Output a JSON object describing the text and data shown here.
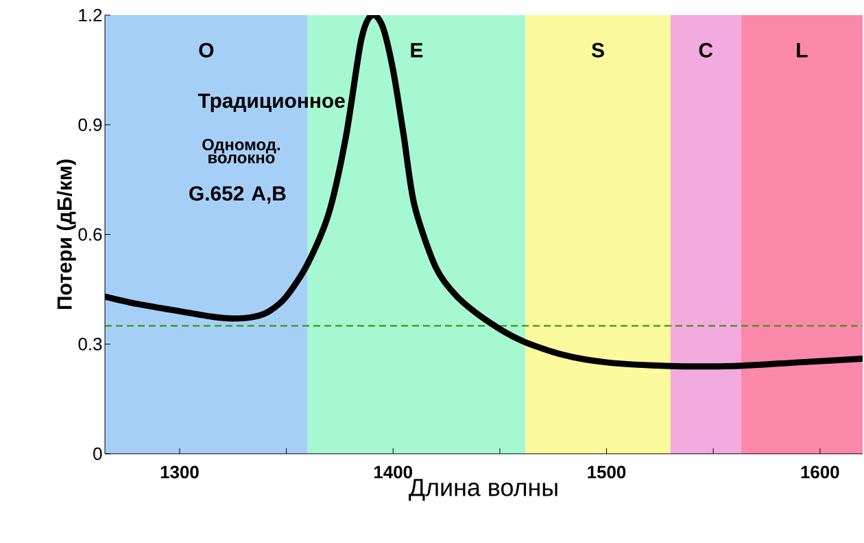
{
  "chart_data": {
    "type": "line",
    "xlabel": "Длина волны",
    "ylabel": "Потери  (дБ/км)",
    "x": [
      1265,
      1280,
      1300,
      1315,
      1325,
      1335,
      1342,
      1350,
      1360,
      1370,
      1378,
      1385,
      1390,
      1395,
      1400,
      1405,
      1410,
      1420,
      1430,
      1445,
      1460,
      1480,
      1500,
      1530,
      1560,
      1590,
      1620
    ],
    "series": [
      {
        "color": "#000000",
        "values": [
          0.43,
          0.41,
          0.39,
          0.375,
          0.37,
          0.375,
          0.39,
          0.43,
          0.52,
          0.66,
          0.87,
          1.13,
          1.2,
          1.17,
          1.05,
          0.87,
          0.68,
          0.51,
          0.43,
          0.36,
          0.31,
          0.27,
          0.25,
          0.24,
          0.24,
          0.25,
          0.26
        ]
      }
    ],
    "xlim": [
      1265,
      1620
    ],
    "ylim": [
      0,
      1.2
    ],
    "xticks": [
      1300,
      {
        "value": 1350,
        "label": null
      },
      1400,
      {
        "value": 1450,
        "label": null
      },
      1500,
      {
        "value": 1550,
        "label": null
      },
      1600
    ],
    "yticks": [
      0,
      0.3,
      0.6,
      0.9,
      1.2
    ],
    "bands": [
      {
        "axis": "x",
        "from": 1265,
        "to": 1360,
        "label": "O",
        "color": "#a6cff8"
      },
      {
        "axis": "x",
        "from": 1360,
        "to": 1462,
        "label": "E",
        "color": "#a6f8d2"
      },
      {
        "axis": "x",
        "from": 1462,
        "to": 1530,
        "label": "S",
        "color": "#fbfb9e"
      },
      {
        "axis": "x",
        "from": 1530,
        "to": 1563,
        "label": "C",
        "color": "#f2aadf"
      },
      {
        "axis": "x",
        "from": 1563,
        "to": 1620,
        "label": "L",
        "color": "#fc88aa"
      }
    ],
    "ref_lines": [
      {
        "axis": "y",
        "value": 0.35,
        "color": "#3a9a00",
        "line_style": "dashed"
      }
    ],
    "annotations": [
      "Традиционное",
      "Одномод. волокно",
      "G.652 A,B"
    ],
    "grid": false,
    "marker": "none",
    "line_style": "solid"
  }
}
